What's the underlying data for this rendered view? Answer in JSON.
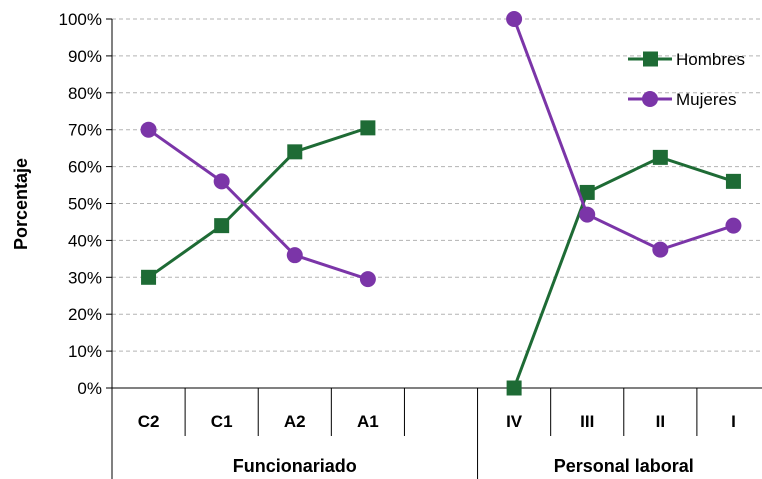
{
  "chart_data": {
    "type": "line",
    "ylabel": "Porcentaje",
    "ylim": [
      0,
      100
    ],
    "yticks": [
      "0%",
      "10%",
      "20%",
      "30%",
      "40%",
      "50%",
      "60%",
      "70%",
      "80%",
      "90%",
      "100%"
    ],
    "categories": [
      "C2",
      "C1",
      "A2",
      "A1",
      "",
      "IV",
      "III",
      "II",
      "I"
    ],
    "groups": [
      {
        "label": "Funcionariado",
        "categories": [
          "C2",
          "C1",
          "A2",
          "A1"
        ]
      },
      {
        "label": "Personal laboral",
        "categories": [
          "IV",
          "III",
          "II",
          "I"
        ]
      }
    ],
    "series": [
      {
        "name": "Hombres",
        "color": "#1e6b35",
        "marker": "square",
        "segments": [
          [
            30,
            44,
            64,
            70.5
          ],
          [
            0,
            53,
            62.5,
            56
          ]
        ]
      },
      {
        "name": "Mujeres",
        "color": "#7b35a8",
        "marker": "circle",
        "segments": [
          [
            70,
            56,
            36,
            29.5
          ],
          [
            100,
            47,
            37.5,
            44
          ]
        ]
      }
    ],
    "legend": "top-right",
    "grid": true
  }
}
